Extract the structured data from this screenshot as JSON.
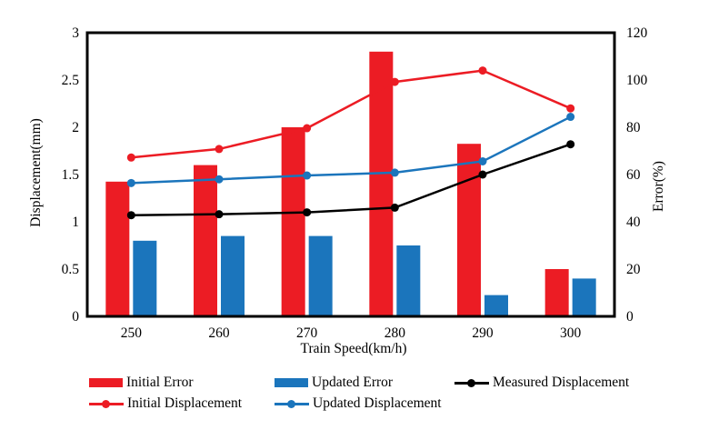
{
  "chart_data": {
    "type": "bar+line combo",
    "categories": [
      "250",
      "260",
      "270",
      "280",
      "290",
      "300"
    ],
    "xlabel": "Train Speed(km/h)",
    "grid": false,
    "legend_position": "bottom",
    "left_axis": {
      "label": "Displacement(mm)",
      "min": 0,
      "max": 3,
      "tick_step": 0.5,
      "ticks": [
        "0",
        "0.5",
        "1",
        "1.5",
        "2",
        "2.5",
        "3"
      ]
    },
    "right_axis": {
      "label": "Error(%)",
      "min": 0,
      "max": 120,
      "tick_step": 20,
      "ticks": [
        "0",
        "20",
        "40",
        "60",
        "80",
        "100",
        "120"
      ]
    },
    "bar_series": [
      {
        "name": "Initial Error",
        "axis": "right",
        "color": "#EC1C24",
        "values": [
          57,
          64,
          80,
          112,
          73,
          20
        ]
      },
      {
        "name": "Updated Error",
        "axis": "right",
        "color": "#1B75BC",
        "values": [
          32,
          34,
          34,
          30,
          9,
          16
        ]
      }
    ],
    "line_series": [
      {
        "name": "Measured Displacement",
        "axis": "left",
        "color": "#000000",
        "values": [
          1.07,
          1.08,
          1.1,
          1.15,
          1.5,
          1.82
        ]
      },
      {
        "name": "Initial Displacement",
        "axis": "left",
        "color": "#EC1C24",
        "values": [
          1.68,
          1.77,
          1.99,
          2.48,
          2.6,
          2.2
        ]
      },
      {
        "name": "Updated Displacement",
        "axis": "left",
        "color": "#1B75BC",
        "values": [
          1.41,
          1.45,
          1.49,
          1.52,
          1.64,
          2.11
        ]
      }
    ],
    "legend": [
      {
        "label": "Initial Error",
        "marker": "bar",
        "color": "#EC1C24"
      },
      {
        "label": "Updated Error",
        "marker": "bar",
        "color": "#1B75BC"
      },
      {
        "label": "Measured Displacement",
        "marker": "line-dot",
        "color": "#000000"
      },
      {
        "label": "Initial Displacement",
        "marker": "line-dot",
        "color": "#EC1C24"
      },
      {
        "label": "Updated Displacement",
        "marker": "line-dot",
        "color": "#1B75BC"
      }
    ]
  }
}
